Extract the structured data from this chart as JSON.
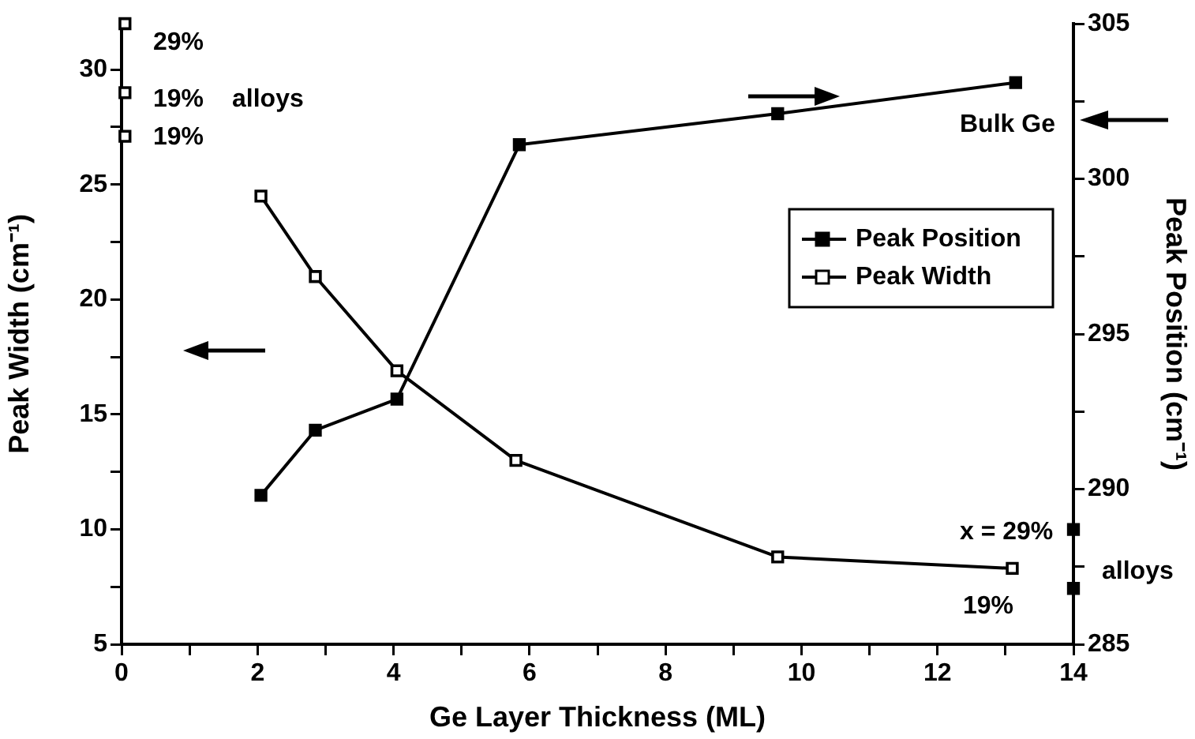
{
  "chart_data": {
    "type": "line",
    "xlabel": "Ge Layer Thickness (ML)",
    "ylabel": "Peak Width (cm⁻¹)",
    "y2label": "Peak Position (cm⁻¹)",
    "xlim": [
      0,
      14
    ],
    "xticks": [
      0,
      {
        "value": 1,
        "label": null
      },
      2,
      {
        "value": 3,
        "label": null
      },
      4,
      {
        "value": 5,
        "label": null
      },
      6,
      {
        "value": 7,
        "label": null
      },
      8,
      {
        "value": 9,
        "label": null
      },
      10,
      {
        "value": 11,
        "label": null
      },
      12,
      {
        "value": 13,
        "label": null
      },
      14
    ],
    "ylim": [
      5,
      32
    ],
    "yticks": [
      5,
      {
        "value": 7.5,
        "label": null
      },
      10,
      {
        "value": 12.5,
        "label": null
      },
      15,
      {
        "value": 17.5,
        "label": null
      },
      20,
      {
        "value": 22.5,
        "label": null
      },
      25,
      {
        "value": 27.5,
        "label": null
      },
      30
    ],
    "y2lim": [
      285,
      305
    ],
    "y2ticks": [
      285,
      {
        "value": 287.5,
        "label": null
      },
      290,
      {
        "value": 292.5,
        "label": null
      },
      295,
      {
        "value": 297.5,
        "label": null
      },
      300,
      {
        "value": 302.5,
        "label": null
      },
      305
    ],
    "series": [
      {
        "name": "Peak Position",
        "type": "line",
        "axis": "y2",
        "color": "#000000",
        "x": [
          2.05,
          2.85,
          4.05,
          5.85,
          9.65,
          13.15
        ],
        "values": [
          289.8,
          291.9,
          292.9,
          301.1,
          302.1,
          303.1
        ]
      },
      {
        "name": "Peak Width",
        "type": "line",
        "axis": "y",
        "color": "#000000",
        "x": [
          2.05,
          2.85,
          4.05,
          5.8,
          9.65,
          13.1
        ],
        "values": [
          24.5,
          21,
          16.9,
          13,
          8.8,
          8.3
        ]
      },
      {
        "type": "scatter",
        "axis": "y",
        "color": "#000000",
        "x": [
          0.05,
          0.05,
          0.05
        ],
        "values": [
          32,
          29,
          27.1
        ]
      },
      {
        "type": "scatter",
        "axis": "y2",
        "color": "#000000",
        "x": [
          14,
          14
        ],
        "values": [
          288.7,
          286.8
        ]
      }
    ],
    "annotations": [
      "29%",
      "19%",
      "alloys",
      "19%",
      "Bulk Ge",
      "x = 29%",
      "alloys",
      "19%"
    ],
    "legend": "right",
    "marker": "square",
    "line_style": "solid",
    "grid": false
  }
}
